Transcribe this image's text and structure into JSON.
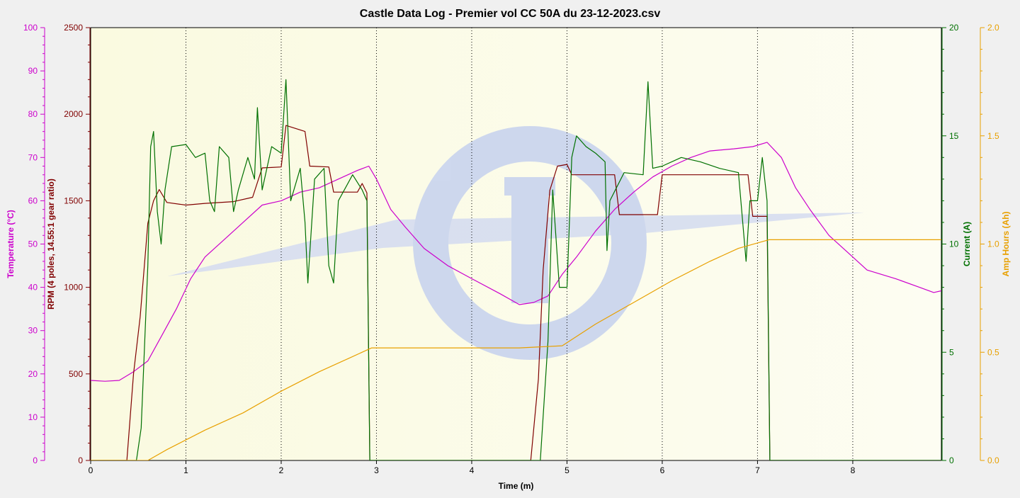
{
  "chart_data": {
    "type": "line",
    "title": "Castle Data Log - Premier vol CC 50A du 23-12-2023.csv",
    "xlabel": "Time (m)",
    "xlim": [
      0,
      8.93
    ],
    "xticks": [
      0,
      1,
      2,
      3,
      4,
      5,
      6,
      7,
      8
    ],
    "grid": "vertical dotted",
    "background_color": "#fbfbe4",
    "axes": {
      "temperature": {
        "label": "Temperature (°C)",
        "range": [
          0,
          100
        ],
        "ticks": [
          0,
          10,
          20,
          30,
          40,
          50,
          60,
          70,
          80,
          90,
          100
        ],
        "color": "#cc00cc",
        "side": "left"
      },
      "rpm": {
        "label": "RPM (4 poles, 14.55:1 gear ratio)",
        "range": [
          0,
          2500
        ],
        "ticks": [
          0,
          500,
          1000,
          1500,
          2000,
          2500
        ],
        "color": "#800000",
        "side": "left"
      },
      "current": {
        "label": "Current (A)",
        "range": [
          0,
          20
        ],
        "ticks": [
          0,
          5,
          10,
          15,
          20
        ],
        "color": "#007000",
        "side": "right"
      },
      "amphours": {
        "label": "Amp Hours (Ah)",
        "range": [
          0,
          2.0
        ],
        "ticks": [
          "0.0",
          "0.5",
          "1.0",
          "1.5",
          "2.0"
        ],
        "color": "#e8a000",
        "side": "right"
      }
    },
    "series": [
      {
        "axis": "temperature",
        "color": "#cc00cc",
        "points": [
          [
            0,
            18.5
          ],
          [
            0.15,
            18.3
          ],
          [
            0.3,
            18.5
          ],
          [
            0.45,
            20.5
          ],
          [
            0.6,
            23
          ],
          [
            0.75,
            29
          ],
          [
            0.9,
            35
          ],
          [
            1.05,
            42
          ],
          [
            1.2,
            47
          ],
          [
            1.4,
            51
          ],
          [
            1.6,
            55
          ],
          [
            1.8,
            59
          ],
          [
            2.0,
            60
          ],
          [
            2.2,
            62
          ],
          [
            2.4,
            63
          ],
          [
            2.6,
            65
          ],
          [
            2.8,
            67
          ],
          [
            2.92,
            68
          ],
          [
            3.0,
            65
          ],
          [
            3.15,
            58
          ],
          [
            3.3,
            54
          ],
          [
            3.5,
            49
          ],
          [
            3.75,
            45
          ],
          [
            4.0,
            42
          ],
          [
            4.3,
            38.5
          ],
          [
            4.5,
            36
          ],
          [
            4.65,
            36.5
          ],
          [
            4.8,
            38
          ],
          [
            4.95,
            43
          ],
          [
            5.1,
            47
          ],
          [
            5.3,
            53
          ],
          [
            5.5,
            58
          ],
          [
            5.7,
            62
          ],
          [
            5.9,
            65.5
          ],
          [
            6.1,
            68
          ],
          [
            6.3,
            70
          ],
          [
            6.5,
            71.5
          ],
          [
            6.75,
            72
          ],
          [
            6.95,
            72.5
          ],
          [
            7.1,
            73.5
          ],
          [
            7.25,
            70
          ],
          [
            7.4,
            63
          ],
          [
            7.55,
            58
          ],
          [
            7.75,
            52
          ],
          [
            7.95,
            48
          ],
          [
            8.15,
            44
          ],
          [
            8.45,
            42
          ],
          [
            8.7,
            40
          ],
          [
            8.85,
            38.8
          ],
          [
            8.93,
            39.2
          ]
        ]
      },
      {
        "axis": "rpm",
        "color": "#800000",
        "points": [
          [
            0,
            0
          ],
          [
            0.38,
            0
          ],
          [
            0.45,
            500
          ],
          [
            0.52,
            830
          ],
          [
            0.6,
            1370
          ],
          [
            0.66,
            1500
          ],
          [
            0.72,
            1565
          ],
          [
            0.8,
            1490
          ],
          [
            1.0,
            1475
          ],
          [
            1.2,
            1485
          ],
          [
            1.5,
            1495
          ],
          [
            1.7,
            1520
          ],
          [
            1.8,
            1690
          ],
          [
            2.0,
            1695
          ],
          [
            2.05,
            1935
          ],
          [
            2.25,
            1900
          ],
          [
            2.3,
            1700
          ],
          [
            2.5,
            1695
          ],
          [
            2.55,
            1550
          ],
          [
            2.8,
            1550
          ],
          [
            2.85,
            1600
          ],
          [
            2.9,
            1545
          ],
          [
            2.93,
            0
          ],
          [
            4.62,
            0
          ],
          [
            4.7,
            470
          ],
          [
            4.75,
            1100
          ],
          [
            4.82,
            1560
          ],
          [
            4.9,
            1700
          ],
          [
            5.0,
            1710
          ],
          [
            5.05,
            1650
          ],
          [
            5.5,
            1650
          ],
          [
            5.55,
            1420
          ],
          [
            5.95,
            1420
          ],
          [
            6.0,
            1650
          ],
          [
            6.9,
            1650
          ],
          [
            6.95,
            1410
          ],
          [
            7.1,
            1410
          ],
          [
            7.13,
            0
          ],
          [
            8.93,
            0
          ]
        ]
      },
      {
        "axis": "current",
        "color": "#007000",
        "points": [
          [
            0,
            0
          ],
          [
            0.48,
            0
          ],
          [
            0.53,
            1.5
          ],
          [
            0.6,
            9
          ],
          [
            0.63,
            14.5
          ],
          [
            0.66,
            15.2
          ],
          [
            0.7,
            11.5
          ],
          [
            0.74,
            10
          ],
          [
            0.78,
            12.5
          ],
          [
            0.85,
            14.5
          ],
          [
            1.0,
            14.6
          ],
          [
            1.1,
            14
          ],
          [
            1.2,
            14.2
          ],
          [
            1.25,
            12
          ],
          [
            1.3,
            11.5
          ],
          [
            1.35,
            14.5
          ],
          [
            1.45,
            14
          ],
          [
            1.5,
            11.5
          ],
          [
            1.55,
            12.5
          ],
          [
            1.65,
            14
          ],
          [
            1.72,
            13
          ],
          [
            1.75,
            16.3
          ],
          [
            1.8,
            12.5
          ],
          [
            1.9,
            14.5
          ],
          [
            2.0,
            14.2
          ],
          [
            2.05,
            17.6
          ],
          [
            2.1,
            12
          ],
          [
            2.2,
            13.5
          ],
          [
            2.25,
            11
          ],
          [
            2.28,
            8.2
          ],
          [
            2.35,
            13
          ],
          [
            2.45,
            13.5
          ],
          [
            2.5,
            9
          ],
          [
            2.55,
            8.2
          ],
          [
            2.6,
            12
          ],
          [
            2.75,
            13.2
          ],
          [
            2.85,
            12.5
          ],
          [
            2.9,
            12
          ],
          [
            2.93,
            0
          ],
          [
            4.72,
            0
          ],
          [
            4.8,
            5.5
          ],
          [
            4.85,
            12.5
          ],
          [
            4.92,
            8
          ],
          [
            5.0,
            8
          ],
          [
            5.05,
            14
          ],
          [
            5.1,
            15
          ],
          [
            5.2,
            14.5
          ],
          [
            5.3,
            14.2
          ],
          [
            5.4,
            13.8
          ],
          [
            5.42,
            9.7
          ],
          [
            5.45,
            12
          ],
          [
            5.6,
            13.3
          ],
          [
            5.8,
            13.2
          ],
          [
            5.85,
            17.5
          ],
          [
            5.9,
            13.5
          ],
          [
            6.0,
            13.6
          ],
          [
            6.2,
            14
          ],
          [
            6.4,
            13.8
          ],
          [
            6.6,
            13.5
          ],
          [
            6.8,
            13.3
          ],
          [
            6.88,
            9.2
          ],
          [
            6.92,
            12
          ],
          [
            7.0,
            12
          ],
          [
            7.05,
            14
          ],
          [
            7.1,
            12
          ],
          [
            7.13,
            0
          ],
          [
            8.93,
            0
          ]
        ]
      },
      {
        "axis": "amphours",
        "color": "#e8a000",
        "points": [
          [
            0,
            0
          ],
          [
            0.6,
            0
          ],
          [
            0.8,
            0.05
          ],
          [
            1.2,
            0.14
          ],
          [
            1.6,
            0.22
          ],
          [
            2.0,
            0.32
          ],
          [
            2.4,
            0.41
          ],
          [
            2.7,
            0.47
          ],
          [
            2.95,
            0.52
          ],
          [
            3.5,
            0.52
          ],
          [
            4.5,
            0.52
          ],
          [
            4.95,
            0.53
          ],
          [
            5.3,
            0.63
          ],
          [
            5.7,
            0.73
          ],
          [
            6.1,
            0.83
          ],
          [
            6.5,
            0.92
          ],
          [
            6.8,
            0.98
          ],
          [
            7.12,
            1.02
          ],
          [
            8.93,
            1.02
          ]
        ]
      }
    ]
  }
}
